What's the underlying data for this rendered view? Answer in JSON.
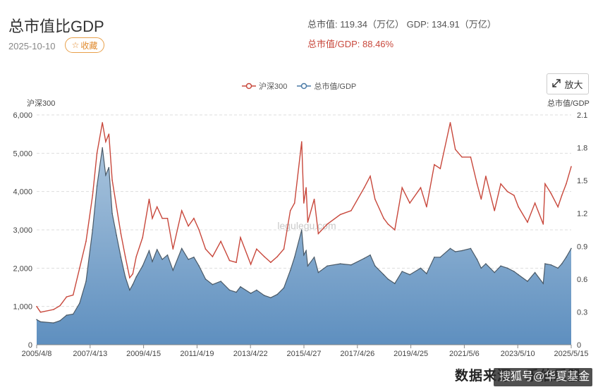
{
  "header": {
    "title": "总市值比GDP",
    "date": "2025-10-10",
    "fav_label": "收藏",
    "fav_icon": "star-icon",
    "stat_line1": "总市值: 119.34（万亿） GDP: 134.91（万亿）",
    "stat_line2": "总市值/GDP: 88.46%",
    "zoom_label": "放大",
    "zoom_icon": "expand-icon"
  },
  "watermark": {
    "line": "数据来源：乐估乐股",
    "brand": "搜狐号@华夏基金"
  },
  "colors": {
    "hs300": "#c8483c",
    "ratio_line": "#4a5a68",
    "ratio_fill_top": "#a9c4dd",
    "ratio_fill_bottom": "#5e8fbf",
    "grid": "#dddddd"
  },
  "chart_data": {
    "type": "line",
    "watermark_text": "legulegu.com",
    "legend": [
      "沪深300",
      "总市值/GDP"
    ],
    "legend_position": "top-center",
    "y_left": {
      "label": "沪深300",
      "range": [
        0,
        6000
      ],
      "ticks": [
        "0",
        "1,000",
        "2,000",
        "3,000",
        "4,000",
        "5,000",
        "6,000"
      ]
    },
    "y_right": {
      "label": "总市值/GDP",
      "range": [
        0,
        2.1
      ],
      "ticks": [
        "0",
        "0.3",
        "0.6",
        "0.9",
        "1.2",
        "1.5",
        "1.8",
        "2.1"
      ]
    },
    "x_ticks": [
      "2005/4/8",
      "2007/4/13",
      "2009/4/15",
      "2011/4/19",
      "2013/4/22",
      "2015/4/27",
      "2017/4/26",
      "2019/4/25",
      "2021/5/6",
      "2023/5/10",
      "2025/5/15"
    ],
    "x_range": [
      "2005-04-08",
      "2025-10-10"
    ],
    "grid": true,
    "series": [
      {
        "name": "沪深300",
        "axis": "left",
        "style": "line",
        "points": [
          [
            "2005-04-08",
            1000
          ],
          [
            "2005-06-01",
            850
          ],
          [
            "2005-12-01",
            920
          ],
          [
            "2006-03-01",
            1020
          ],
          [
            "2006-06-01",
            1250
          ],
          [
            "2006-09-01",
            1300
          ],
          [
            "2006-12-01",
            2000
          ],
          [
            "2007-03-01",
            2700
          ],
          [
            "2007-06-01",
            3900
          ],
          [
            "2007-08-01",
            5000
          ],
          [
            "2007-10-16",
            5800
          ],
          [
            "2007-12-01",
            5300
          ],
          [
            "2008-01-15",
            5500
          ],
          [
            "2008-03-01",
            4300
          ],
          [
            "2008-05-01",
            3600
          ],
          [
            "2008-07-01",
            2900
          ],
          [
            "2008-09-01",
            2300
          ],
          [
            "2008-11-01",
            1750
          ],
          [
            "2008-12-15",
            1850
          ],
          [
            "2009-02-01",
            2300
          ],
          [
            "2009-05-01",
            2800
          ],
          [
            "2009-08-01",
            3800
          ],
          [
            "2009-09-15",
            3300
          ],
          [
            "2009-11-20",
            3600
          ],
          [
            "2010-02-01",
            3300
          ],
          [
            "2010-04-15",
            3300
          ],
          [
            "2010-07-01",
            2500
          ],
          [
            "2010-11-01",
            3500
          ],
          [
            "2011-02-01",
            3100
          ],
          [
            "2011-04-20",
            3300
          ],
          [
            "2011-07-01",
            3000
          ],
          [
            "2011-10-01",
            2500
          ],
          [
            "2012-01-06",
            2300
          ],
          [
            "2012-05-01",
            2700
          ],
          [
            "2012-09-01",
            2200
          ],
          [
            "2012-12-03",
            2150
          ],
          [
            "2013-02-01",
            2800
          ],
          [
            "2013-06-25",
            2100
          ],
          [
            "2013-09-15",
            2500
          ],
          [
            "2014-01-01",
            2300
          ],
          [
            "2014-04-01",
            2150
          ],
          [
            "2014-07-01",
            2300
          ],
          [
            "2014-10-01",
            2500
          ],
          [
            "2014-12-31",
            3500
          ],
          [
            "2015-03-01",
            3700
          ],
          [
            "2015-06-08",
            5300
          ],
          [
            "2015-07-08",
            3700
          ],
          [
            "2015-08-10",
            4100
          ],
          [
            "2015-09-01",
            3200
          ],
          [
            "2015-12-01",
            3800
          ],
          [
            "2016-01-28",
            2900
          ],
          [
            "2016-06-01",
            3150
          ],
          [
            "2016-12-01",
            3400
          ],
          [
            "2017-05-01",
            3500
          ],
          [
            "2017-11-01",
            4100
          ],
          [
            "2018-01-24",
            4400
          ],
          [
            "2018-04-01",
            3800
          ],
          [
            "2018-08-01",
            3300
          ],
          [
            "2018-10-01",
            3150
          ],
          [
            "2019-01-03",
            3000
          ],
          [
            "2019-04-15",
            4100
          ],
          [
            "2019-08-01",
            3700
          ],
          [
            "2019-12-31",
            4100
          ],
          [
            "2020-03-23",
            3600
          ],
          [
            "2020-07-10",
            4700
          ],
          [
            "2020-10-01",
            4600
          ],
          [
            "2021-02-18",
            5800
          ],
          [
            "2021-05-01",
            5100
          ],
          [
            "2021-08-01",
            4900
          ],
          [
            "2021-12-01",
            4900
          ],
          [
            "2022-03-01",
            4200
          ],
          [
            "2022-04-27",
            3800
          ],
          [
            "2022-07-01",
            4400
          ],
          [
            "2022-10-31",
            3500
          ],
          [
            "2023-01-27",
            4200
          ],
          [
            "2023-05-01",
            4000
          ],
          [
            "2023-08-01",
            3900
          ],
          [
            "2023-10-01",
            3600
          ],
          [
            "2024-02-05",
            3200
          ],
          [
            "2024-05-20",
            3700
          ],
          [
            "2024-09-13",
            3150
          ],
          [
            "2024-10-08",
            4200
          ],
          [
            "2024-12-31",
            3950
          ],
          [
            "2025-04-07",
            3600
          ],
          [
            "2025-06-01",
            3900
          ],
          [
            "2025-08-01",
            4200
          ],
          [
            "2025-10-10",
            4650
          ]
        ]
      },
      {
        "name": "总市值/GDP",
        "axis": "right",
        "style": "area",
        "points": [
          [
            "2005-04-08",
            0.23
          ],
          [
            "2005-06-01",
            0.21
          ],
          [
            "2005-12-01",
            0.2
          ],
          [
            "2006-03-01",
            0.22
          ],
          [
            "2006-06-01",
            0.27
          ],
          [
            "2006-09-01",
            0.28
          ],
          [
            "2006-12-01",
            0.38
          ],
          [
            "2007-03-01",
            0.58
          ],
          [
            "2007-06-01",
            1.05
          ],
          [
            "2007-08-01",
            1.45
          ],
          [
            "2007-10-16",
            1.8
          ],
          [
            "2007-12-01",
            1.55
          ],
          [
            "2008-01-15",
            1.62
          ],
          [
            "2008-03-01",
            1.2
          ],
          [
            "2008-05-01",
            1.0
          ],
          [
            "2008-07-01",
            0.8
          ],
          [
            "2008-09-01",
            0.62
          ],
          [
            "2008-11-01",
            0.5
          ],
          [
            "2008-12-15",
            0.55
          ],
          [
            "2009-02-01",
            0.62
          ],
          [
            "2009-05-01",
            0.72
          ],
          [
            "2009-08-01",
            0.86
          ],
          [
            "2009-09-15",
            0.76
          ],
          [
            "2009-11-20",
            0.87
          ],
          [
            "2010-02-01",
            0.78
          ],
          [
            "2010-04-15",
            0.82
          ],
          [
            "2010-07-01",
            0.68
          ],
          [
            "2010-11-01",
            0.88
          ],
          [
            "2011-02-01",
            0.78
          ],
          [
            "2011-04-20",
            0.8
          ],
          [
            "2011-07-01",
            0.72
          ],
          [
            "2011-10-01",
            0.6
          ],
          [
            "2012-01-06",
            0.55
          ],
          [
            "2012-05-01",
            0.58
          ],
          [
            "2012-09-01",
            0.5
          ],
          [
            "2012-12-03",
            0.48
          ],
          [
            "2013-02-01",
            0.53
          ],
          [
            "2013-06-25",
            0.47
          ],
          [
            "2013-09-15",
            0.5
          ],
          [
            "2014-01-01",
            0.45
          ],
          [
            "2014-04-01",
            0.43
          ],
          [
            "2014-07-01",
            0.46
          ],
          [
            "2014-10-01",
            0.52
          ],
          [
            "2014-12-31",
            0.68
          ],
          [
            "2015-03-01",
            0.8
          ],
          [
            "2015-06-08",
            1.05
          ],
          [
            "2015-07-08",
            0.82
          ],
          [
            "2015-08-10",
            0.86
          ],
          [
            "2015-09-01",
            0.72
          ],
          [
            "2015-12-01",
            0.8
          ],
          [
            "2016-01-28",
            0.66
          ],
          [
            "2016-06-01",
            0.72
          ],
          [
            "2016-12-01",
            0.74
          ],
          [
            "2017-05-01",
            0.73
          ],
          [
            "2017-11-01",
            0.79
          ],
          [
            "2018-01-24",
            0.82
          ],
          [
            "2018-04-01",
            0.72
          ],
          [
            "2018-08-01",
            0.64
          ],
          [
            "2018-10-01",
            0.6
          ],
          [
            "2019-01-03",
            0.56
          ],
          [
            "2019-04-15",
            0.67
          ],
          [
            "2019-08-01",
            0.64
          ],
          [
            "2019-12-31",
            0.7
          ],
          [
            "2020-03-23",
            0.65
          ],
          [
            "2020-07-10",
            0.8
          ],
          [
            "2020-10-01",
            0.8
          ],
          [
            "2021-02-18",
            0.88
          ],
          [
            "2021-05-01",
            0.85
          ],
          [
            "2021-08-01",
            0.86
          ],
          [
            "2021-12-01",
            0.88
          ],
          [
            "2022-03-01",
            0.78
          ],
          [
            "2022-04-27",
            0.7
          ],
          [
            "2022-07-01",
            0.74
          ],
          [
            "2022-10-31",
            0.66
          ],
          [
            "2023-01-27",
            0.72
          ],
          [
            "2023-05-01",
            0.7
          ],
          [
            "2023-08-01",
            0.67
          ],
          [
            "2023-10-01",
            0.64
          ],
          [
            "2024-02-05",
            0.58
          ],
          [
            "2024-05-20",
            0.66
          ],
          [
            "2024-09-13",
            0.56
          ],
          [
            "2024-10-08",
            0.74
          ],
          [
            "2024-12-31",
            0.73
          ],
          [
            "2025-04-07",
            0.7
          ],
          [
            "2025-06-01",
            0.74
          ],
          [
            "2025-08-01",
            0.8
          ],
          [
            "2025-10-10",
            0.88
          ]
        ]
      }
    ]
  }
}
